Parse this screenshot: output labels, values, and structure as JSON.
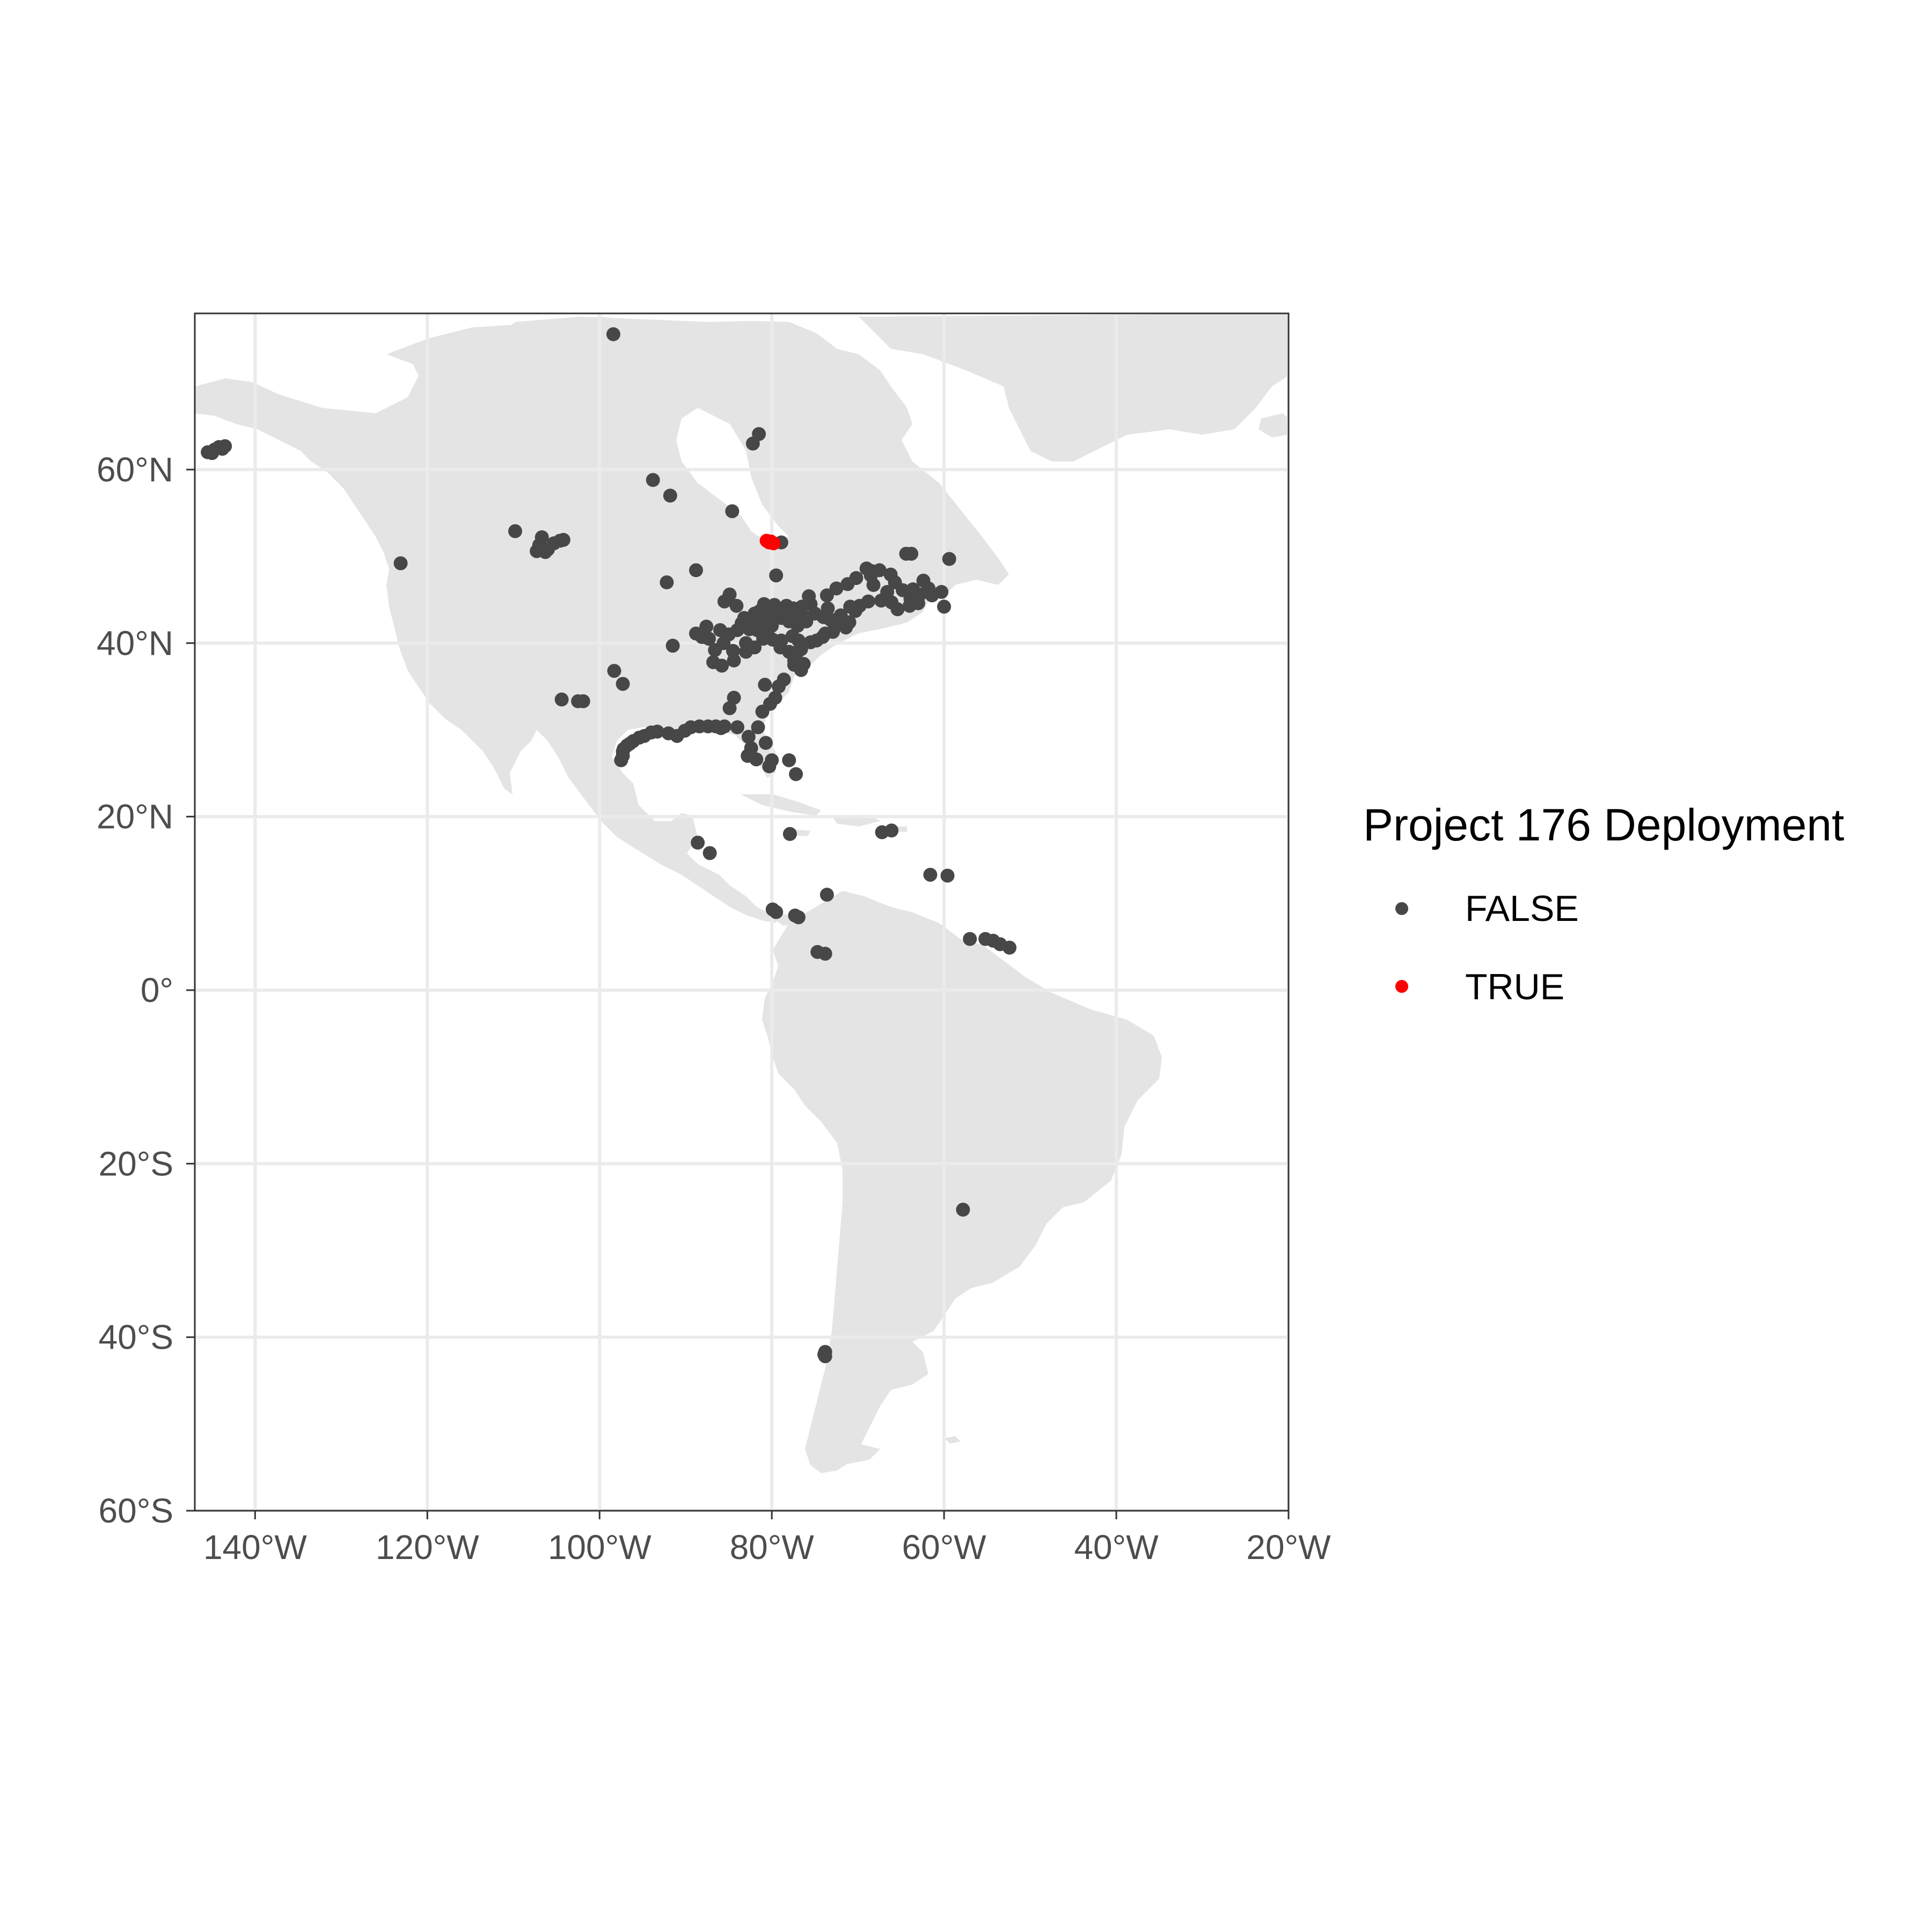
{
  "chart_data": {
    "type": "scatter",
    "subtype": "map",
    "title": "",
    "xlabel": "",
    "ylabel": "",
    "xlim": [
      -147,
      -20
    ],
    "ylim": [
      -60,
      78
    ],
    "x_ticks": [
      {
        "value": -140,
        "label": "140°W"
      },
      {
        "value": -120,
        "label": "120°W"
      },
      {
        "value": -100,
        "label": "100°W"
      },
      {
        "value": -80,
        "label": "80°W"
      },
      {
        "value": -60,
        "label": "60°W"
      },
      {
        "value": -40,
        "label": "40°W"
      },
      {
        "value": -20,
        "label": "20°W"
      }
    ],
    "y_ticks": [
      {
        "value": 60,
        "label": "60°N"
      },
      {
        "value": 40,
        "label": "40°N"
      },
      {
        "value": 20,
        "label": "20°N"
      },
      {
        "value": 0,
        "label": "0°"
      },
      {
        "value": -20,
        "label": "20°S"
      },
      {
        "value": -40,
        "label": "40°S"
      },
      {
        "value": -60,
        "label": "60°S"
      }
    ],
    "grid": true,
    "land_color": "#e4e4e4",
    "grid_color": "#ebebeb",
    "legend": {
      "title": "Project 176 Deployment",
      "position": "right",
      "entries": [
        {
          "label": "FALSE",
          "color": "#474747"
        },
        {
          "label": "TRUE",
          "color": "#ff0000"
        }
      ]
    },
    "series": [
      {
        "name": "FALSE",
        "color": "#474747",
        "points": [
          [
            -98.4,
            75.6
          ],
          [
            -81.5,
            64.1
          ],
          [
            -82.2,
            63
          ],
          [
            -93.8,
            58.8
          ],
          [
            -91.8,
            57
          ],
          [
            -84.6,
            55.2
          ],
          [
            -78.9,
            51.6
          ],
          [
            -79.5,
            47.8
          ],
          [
            -59.4,
            49.7
          ],
          [
            -145.5,
            62
          ],
          [
            -144.7,
            62.3
          ],
          [
            -144.2,
            62.6
          ],
          [
            -143.5,
            62.7
          ],
          [
            -145.0,
            61.9
          ],
          [
            -143.8,
            62.4
          ],
          [
            -123.1,
            49.2
          ],
          [
            -109.8,
            52.9
          ],
          [
            -106.7,
            52.2
          ],
          [
            -106.8,
            51.0
          ],
          [
            -106.0,
            50.8
          ],
          [
            -105.3,
            51.5
          ],
          [
            -106.3,
            50.5
          ],
          [
            -107.3,
            50.6
          ],
          [
            -104.6,
            51.8
          ],
          [
            -104.2,
            51.9
          ],
          [
            -107.0,
            51.3
          ],
          [
            -92.2,
            47
          ],
          [
            -88.8,
            48.4
          ],
          [
            -91.5,
            39.7
          ],
          [
            -84.1,
            44.3
          ],
          [
            -84.9,
            45.6
          ],
          [
            -85.5,
            44.8
          ],
          [
            -98.3,
            36.8
          ],
          [
            -97.3,
            35.3
          ],
          [
            -104.4,
            33.5
          ],
          [
            -102.5,
            33.3
          ],
          [
            -101.9,
            33.3
          ],
          [
            -88.8,
            41.1
          ],
          [
            -88.1,
            40.7
          ],
          [
            -87.6,
            41.9
          ],
          [
            -87.3,
            40.5
          ],
          [
            -86.6,
            39.2
          ],
          [
            -85.6,
            40.0
          ],
          [
            -86.8,
            37.8
          ],
          [
            -85.8,
            37.4
          ],
          [
            -84.4,
            38.0
          ],
          [
            -84.5,
            39.1
          ],
          [
            -83.0,
            40.0
          ],
          [
            -82.6,
            41.6
          ],
          [
            -83.5,
            42.3
          ],
          [
            -83.0,
            42.4
          ],
          [
            -81.7,
            41.5
          ],
          [
            -80.5,
            41.1
          ],
          [
            -79.9,
            40.4
          ],
          [
            -78.9,
            40.3
          ],
          [
            -77.6,
            40.8
          ],
          [
            -76.9,
            40.3
          ],
          [
            -75.5,
            40.1
          ],
          [
            -74.8,
            40.3
          ],
          [
            -74.1,
            40.7
          ],
          [
            -73.8,
            41.1
          ],
          [
            -76.2,
            43.0
          ],
          [
            -77.6,
            43.2
          ],
          [
            -78.9,
            42.9
          ],
          [
            -79.4,
            43.7
          ],
          [
            -80.5,
            43.4
          ],
          [
            -81.2,
            43.0
          ],
          [
            -82.0,
            42.3
          ],
          [
            -83.2,
            42.9
          ],
          [
            -80.9,
            44.5
          ],
          [
            -79.7,
            44.4
          ],
          [
            -78.3,
            44.3
          ],
          [
            -76.5,
            44.2
          ],
          [
            -75.7,
            45.4
          ],
          [
            -73.6,
            45.5
          ],
          [
            -72.5,
            46.3
          ],
          [
            -71.2,
            46.8
          ],
          [
            -70.2,
            47.5
          ],
          [
            -68.5,
            47.8
          ],
          [
            -69.0,
            48.6
          ],
          [
            -68.4,
            48.3
          ],
          [
            -67.5,
            48.4
          ],
          [
            -66.2,
            47.9
          ],
          [
            -65.7,
            47.0
          ],
          [
            -64.8,
            46.1
          ],
          [
            -63.9,
            45.1
          ],
          [
            -63.0,
            44.6
          ],
          [
            -64.0,
            44.3
          ],
          [
            -65.4,
            43.9
          ],
          [
            -66.1,
            44.7
          ],
          [
            -67.3,
            44.9
          ],
          [
            -68.8,
            44.8
          ],
          [
            -70.3,
            43.7
          ],
          [
            -71.0,
            42.4
          ],
          [
            -71.4,
            41.8
          ],
          [
            -72.9,
            41.3
          ],
          [
            -72.7,
            42.1
          ],
          [
            -73.2,
            42.7
          ],
          [
            -72.0,
            43.2
          ],
          [
            -70.9,
            44.2
          ],
          [
            -69.8,
            44.3
          ],
          [
            -64.4,
            50.3
          ],
          [
            -63.8,
            50.3
          ],
          [
            -62.4,
            47.2
          ],
          [
            -61.8,
            46.3
          ],
          [
            -60.0,
            44.2
          ],
          [
            -60.3,
            45.9
          ],
          [
            -61.4,
            45.5
          ],
          [
            -62.8,
            45.6
          ],
          [
            -63.6,
            46.2
          ],
          [
            -66.6,
            45.9
          ],
          [
            -68.2,
            46.7
          ],
          [
            -82.0,
            43.4
          ],
          [
            -81.4,
            43.7
          ],
          [
            -80.1,
            43.0
          ],
          [
            -79.0,
            43.6
          ],
          [
            -77.0,
            43.7
          ],
          [
            -75.0,
            43.4
          ],
          [
            -74.0,
            43.0
          ],
          [
            -73.5,
            44.0
          ],
          [
            -75.5,
            44.5
          ],
          [
            -77.5,
            44.0
          ],
          [
            -76.0,
            42.5
          ],
          [
            -77.0,
            42.0
          ],
          [
            -78.0,
            42.5
          ],
          [
            -80.0,
            42.0
          ],
          [
            -81.0,
            42.5
          ],
          [
            -84.0,
            41.5
          ],
          [
            -85.0,
            41.0
          ],
          [
            -86.0,
            41.5
          ],
          [
            -83.0,
            39.0
          ],
          [
            -82.0,
            39.5
          ],
          [
            -81.0,
            40.5
          ],
          [
            -79.0,
            39.5
          ],
          [
            -78.0,
            39.0
          ],
          [
            -77.0,
            39.0
          ],
          [
            -76.6,
            39.3
          ],
          [
            -77.4,
            38.0
          ],
          [
            -76.3,
            37.6
          ],
          [
            -76.6,
            36.9
          ],
          [
            -77.4,
            37.5
          ],
          [
            -78.6,
            35.8
          ],
          [
            -79.2,
            35.0
          ],
          [
            -80.8,
            35.2
          ],
          [
            -80.2,
            33.0
          ],
          [
            -79.6,
            33.7
          ],
          [
            -81.1,
            32.1
          ],
          [
            -84.4,
            33.7
          ],
          [
            -84.9,
            32.5
          ],
          [
            -85.5,
            30.4
          ],
          [
            -84.0,
            30.3
          ],
          [
            -82.7,
            29.2
          ],
          [
            -82.4,
            27.9
          ],
          [
            -81.6,
            30.3
          ],
          [
            -80.7,
            28.5
          ],
          [
            -80.0,
            26.5
          ],
          [
            -80.3,
            25.8
          ],
          [
            -81.8,
            26.6
          ],
          [
            -77.2,
            24.9
          ],
          [
            -78.0,
            26.5
          ],
          [
            -82.8,
            27.0
          ],
          [
            -97.5,
            26.5
          ],
          [
            -97.3,
            27.0
          ],
          [
            -97.2,
            27.8
          ],
          [
            -96.8,
            28.2
          ],
          [
            -96.1,
            28.7
          ],
          [
            -95.4,
            29.1
          ],
          [
            -94.8,
            29.3
          ],
          [
            -94.0,
            29.7
          ],
          [
            -93.3,
            29.8
          ],
          [
            -92.0,
            29.6
          ],
          [
            -91.0,
            29.3
          ],
          [
            -90.1,
            29.9
          ],
          [
            -89.4,
            30.3
          ],
          [
            -88.4,
            30.4
          ],
          [
            -87.4,
            30.4
          ],
          [
            -86.5,
            30.4
          ],
          [
            -85.9,
            30.2
          ],
          [
            -97.3,
            27.5
          ],
          [
            -96.5,
            28.4
          ],
          [
            -88.6,
            17.0
          ],
          [
            -87.2,
            15.8
          ],
          [
            -77.9,
            18.0
          ],
          [
            -67.2,
            18.2
          ],
          [
            -66.1,
            18.4
          ],
          [
            -61.6,
            13.3
          ],
          [
            -59.6,
            13.2
          ],
          [
            -73.6,
            11.0
          ],
          [
            -79.9,
            9.3
          ],
          [
            -79.5,
            9.0
          ],
          [
            -77.3,
            8.6
          ],
          [
            -76.9,
            8.4
          ],
          [
            -74.7,
            4.4
          ],
          [
            -73.8,
            4.2
          ],
          [
            -57.0,
            5.9
          ],
          [
            -55.2,
            5.9
          ],
          [
            -54.3,
            5.7
          ],
          [
            -53.5,
            5.3
          ],
          [
            -52.4,
            4.9
          ],
          [
            -57.8,
            -25.3
          ],
          [
            -73.8,
            -42.2
          ],
          [
            -73.8,
            -41.7
          ],
          [
            -73.9,
            -42.0
          ]
        ]
      },
      {
        "name": "TRUE",
        "color": "#ff0000",
        "points": [
          [
            -80.6,
            51.8
          ],
          [
            -80.3,
            51.6
          ],
          [
            -79.8,
            51.5
          ],
          [
            -80.1,
            51.7
          ]
        ]
      }
    ]
  }
}
